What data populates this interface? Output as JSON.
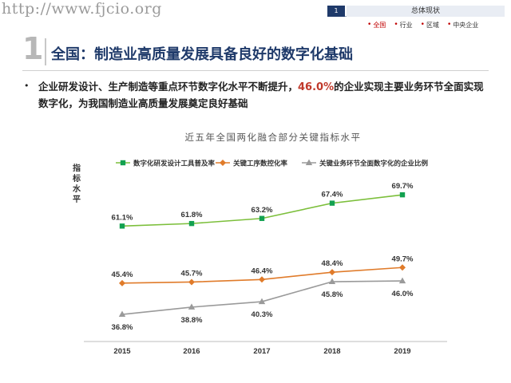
{
  "header": {
    "watermark_url": "http://www.fjcio.org",
    "nav_number": "1",
    "nav_title": "总体现状",
    "nav_items": [
      {
        "label": "全国",
        "active": true
      },
      {
        "label": "行业",
        "active": false
      },
      {
        "label": "区域",
        "active": false
      },
      {
        "label": "中央企业",
        "active": false
      }
    ]
  },
  "section": {
    "number": "1",
    "title_prefix": "全国：",
    "title_main": "制造业高质量发展具备良好的数字化基础"
  },
  "bullet": {
    "text_before": "企业研发设计、生产制造等重点环节数字化水平不断提升，",
    "highlight": "46.0%",
    "text_after": "的企业实现主要业务环节全面实现数字化，为我国制造业高质量发展奠定良好基础"
  },
  "chart_data": {
    "type": "line",
    "title": "近五年全国两化融合部分关键指标水平",
    "ylabel": "指标水平",
    "xlabel": "",
    "categories": [
      "2015",
      "2016",
      "2017",
      "2018",
      "2019"
    ],
    "ylim": [
      30,
      75
    ],
    "grid": false,
    "legend_position": "top",
    "series": [
      {
        "name": "数字化研发设计工具普及率",
        "values": [
          61.1,
          61.8,
          63.2,
          67.4,
          69.7
        ],
        "labels": [
          "61.1%",
          "61.8%",
          "63.2%",
          "67.4%",
          "69.7%"
        ],
        "color": "#7cbf3b",
        "marker_color": "#12a150",
        "marker": "square",
        "label_position": "above"
      },
      {
        "name": "关键工序数控化率",
        "values": [
          45.4,
          45.7,
          46.4,
          48.4,
          49.7
        ],
        "labels": [
          "45.4%",
          "45.7%",
          "46.4%",
          "48.4%",
          "49.7%"
        ],
        "color": "#e07b2a",
        "marker_color": "#e07b2a",
        "marker": "diamond",
        "label_position": "above"
      },
      {
        "name": "关键业务环节全面数字化的企业比例",
        "values": [
          36.8,
          38.8,
          40.3,
          45.8,
          46.0
        ],
        "labels": [
          "36.8%",
          "38.8%",
          "40.3%",
          "45.8%",
          "46.0%"
        ],
        "color": "#9a9a9a",
        "marker_color": "#9a9a9a",
        "marker": "triangle",
        "label_position": "below"
      }
    ]
  }
}
